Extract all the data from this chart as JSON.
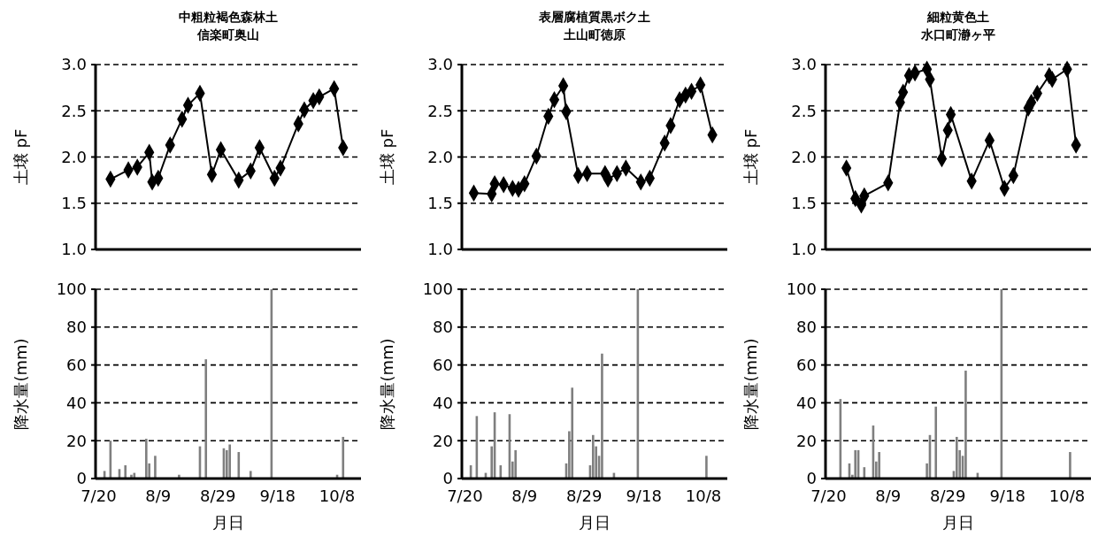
{
  "chart_data": [
    {
      "type": "line",
      "title": "中粗粒褐色森林土",
      "subtitle": "信楽町奥山",
      "ylabel": "土壌 pF",
      "color": "#000000",
      "marker": "diamond",
      "grid": "y",
      "tick_labels": "y",
      "xlim": [
        "--07-19",
        "--10-16"
      ],
      "ylim": [
        1,
        3
      ],
      "yticks": [
        {
          "value": 1,
          "label": "1.0"
        },
        1.5,
        {
          "value": 2,
          "label": "2.0"
        },
        2.5,
        {
          "value": 3,
          "label": "3.0"
        }
      ],
      "x": [
        "--07-24",
        "--07-30",
        "--08-02",
        "--08-06",
        "--08-07",
        "--08-09",
        "--08-13",
        "--08-17",
        "--08-19",
        "--08-23",
        "--08-27",
        "--08-30",
        "--09-05",
        "--09-09",
        "--09-12",
        "--09-17",
        "--09-19",
        "--09-25",
        "--09-27",
        "--09-30",
        "--10-02",
        "--10-07",
        "--10-10"
      ],
      "values": [
        1.76,
        1.86,
        1.89,
        2.05,
        1.73,
        1.77,
        2.13,
        2.41,
        2.56,
        2.69,
        1.81,
        2.08,
        1.75,
        1.85,
        2.1,
        1.77,
        1.88,
        2.36,
        2.51,
        2.61,
        2.65,
        2.74,
        2.1
      ]
    },
    {
      "type": "line",
      "title": "表層腐植質黒ボク土",
      "subtitle": "土山町徳原",
      "ylabel": "土壌 pF",
      "color": "#000000",
      "marker": "diamond",
      "grid": "y",
      "tick_labels": "y",
      "xlim": [
        "--07-19",
        "--10-16"
      ],
      "ylim": [
        1,
        3
      ],
      "yticks": [
        {
          "value": 1,
          "label": "1.0"
        },
        1.5,
        {
          "value": 2,
          "label": "2.0"
        },
        2.5,
        {
          "value": 3,
          "label": "3.0"
        }
      ],
      "x": [
        "--07-23",
        "--07-29",
        "--07-30",
        "--08-02",
        "--08-05",
        "--08-07",
        "--08-09",
        "--08-13",
        "--08-17",
        "--08-19",
        "--08-22",
        "--08-23",
        "--08-27",
        "--08-30",
        "--09-05",
        "--09-06",
        "--09-09",
        "--09-12",
        "--09-17",
        "--09-20",
        "--09-25",
        "--09-27",
        "--09-30",
        "--10-02",
        "--10-04",
        "--10-07",
        "--10-11"
      ],
      "values": [
        1.61,
        1.6,
        1.71,
        1.7,
        1.66,
        1.65,
        1.71,
        2.01,
        2.44,
        2.62,
        2.77,
        2.49,
        1.8,
        1.82,
        1.82,
        1.76,
        1.82,
        1.88,
        1.73,
        1.77,
        2.15,
        2.34,
        2.62,
        2.67,
        2.71,
        2.78,
        2.24
      ]
    },
    {
      "type": "line",
      "title": "細粒黄色土",
      "subtitle": "水口町瀞ヶ平",
      "ylabel": "土壌 pF",
      "color": "#000000",
      "marker": "diamond",
      "grid": "y",
      "tick_labels": "y",
      "xlim": [
        "--07-19",
        "--10-16"
      ],
      "ylim": [
        1,
        3
      ],
      "yticks": [
        {
          "value": 1,
          "label": "1.0"
        },
        1.5,
        {
          "value": 2,
          "label": "2.0"
        },
        2.5,
        {
          "value": 3,
          "label": "3.0"
        }
      ],
      "x": [
        "--07-26",
        "--07-29",
        "--07-31",
        "--08-01",
        "--08-09",
        "--08-13",
        "--08-14",
        "--08-16",
        "--08-18",
        "--08-22",
        "--08-23",
        "--08-27",
        "--08-29",
        "--08-30",
        "--09-06",
        "--09-12",
        "--09-17",
        "--09-20",
        "--09-25",
        "--09-26",
        "--09-28",
        "--10-02",
        "--10-03",
        "--10-08",
        "--10-11"
      ],
      "values": [
        1.88,
        1.55,
        1.48,
        1.58,
        1.72,
        2.59,
        2.7,
        2.88,
        2.91,
        2.95,
        2.84,
        1.98,
        2.29,
        2.46,
        1.74,
        2.18,
        1.66,
        1.8,
        2.53,
        2.59,
        2.69,
        2.88,
        2.84,
        2.95,
        2.13
      ]
    },
    {
      "type": "bar",
      "xlabel": "月日",
      "ylabel": "降水量(mm)",
      "color": "#7f7f7f",
      "grid": "y",
      "xlim": [
        "--07-19",
        "--10-16"
      ],
      "xticks": [
        {
          "value": "--07-20",
          "label": "7/20"
        },
        {
          "value": "--08-09",
          "label": "8/9"
        },
        {
          "value": "--08-29",
          "label": "8/29"
        },
        {
          "value": "--09-18",
          "label": "9/18"
        },
        {
          "value": "--10-08",
          "label": "10/8"
        }
      ],
      "ylim": [
        0,
        100
      ],
      "yticks": [
        0,
        20,
        40,
        60,
        80,
        100
      ],
      "x": [
        "--07-22",
        "--07-24",
        "--07-27",
        "--07-29",
        "--07-31",
        "--08-01",
        "--08-05",
        "--08-06",
        "--08-08",
        "--08-16",
        "--08-23",
        "--08-25",
        "--08-31",
        "--09-01",
        "--09-02",
        "--09-05",
        "--09-09",
        "--09-16",
        "--10-08",
        "--10-10"
      ],
      "values": [
        4,
        20,
        5,
        7,
        2,
        3,
        21,
        8,
        12,
        2,
        17,
        63,
        16,
        15,
        18,
        14,
        4,
        100,
        2,
        22
      ]
    },
    {
      "type": "bar",
      "xlabel": "月日",
      "ylabel": "降水量(mm)",
      "color": "#7f7f7f",
      "grid": "y",
      "xlim": [
        "--07-19",
        "--10-16"
      ],
      "xticks": [
        {
          "value": "--07-20",
          "label": "7/20"
        },
        {
          "value": "--08-09",
          "label": "8/9"
        },
        {
          "value": "--08-29",
          "label": "8/29"
        },
        {
          "value": "--09-18",
          "label": "9/18"
        },
        {
          "value": "--10-08",
          "label": "10/8"
        }
      ],
      "ylim": [
        0,
        100
      ],
      "yticks": [
        0,
        20,
        40,
        60,
        80,
        100
      ],
      "x": [
        "--07-22",
        "--07-24",
        "--07-27",
        "--07-29",
        "--07-30",
        "--08-01",
        "--08-04",
        "--08-05",
        "--08-06",
        "--08-23",
        "--08-24",
        "--08-25",
        "--08-31",
        "--09-01",
        "--09-02",
        "--09-03",
        "--09-04",
        "--09-08",
        "--09-16",
        "--10-09"
      ],
      "values": [
        7,
        33,
        3,
        17,
        35,
        7,
        34,
        9,
        15,
        8,
        25,
        48,
        7,
        23,
        17,
        12,
        66,
        3,
        100,
        12
      ]
    },
    {
      "type": "bar",
      "xlabel": "月日",
      "ylabel": "降水量(mm)",
      "color": "#7f7f7f",
      "grid": "y",
      "xlim": [
        "--07-19",
        "--10-16"
      ],
      "xticks": [
        {
          "value": "--07-20",
          "label": "7/20"
        },
        {
          "value": "--08-09",
          "label": "8/9"
        },
        {
          "value": "--08-29",
          "label": "8/29"
        },
        {
          "value": "--09-18",
          "label": "9/18"
        },
        {
          "value": "--10-08",
          "label": "10/8"
        }
      ],
      "ylim": [
        0,
        100
      ],
      "yticks": [
        0,
        20,
        40,
        60,
        80,
        100
      ],
      "x": [
        "--07-24",
        "--07-27",
        "--07-28",
        "--07-29",
        "--07-30",
        "--08-01",
        "--08-04",
        "--08-05",
        "--08-06",
        "--08-22",
        "--08-23",
        "--08-25",
        "--08-31",
        "--09-01",
        "--09-02",
        "--09-03",
        "--09-04",
        "--09-08",
        "--09-16",
        "--10-09"
      ],
      "values": [
        42,
        8,
        2,
        15,
        15,
        6,
        28,
        9,
        14,
        8,
        23,
        38,
        4,
        22,
        15,
        12,
        57,
        3,
        100,
        14
      ]
    }
  ]
}
